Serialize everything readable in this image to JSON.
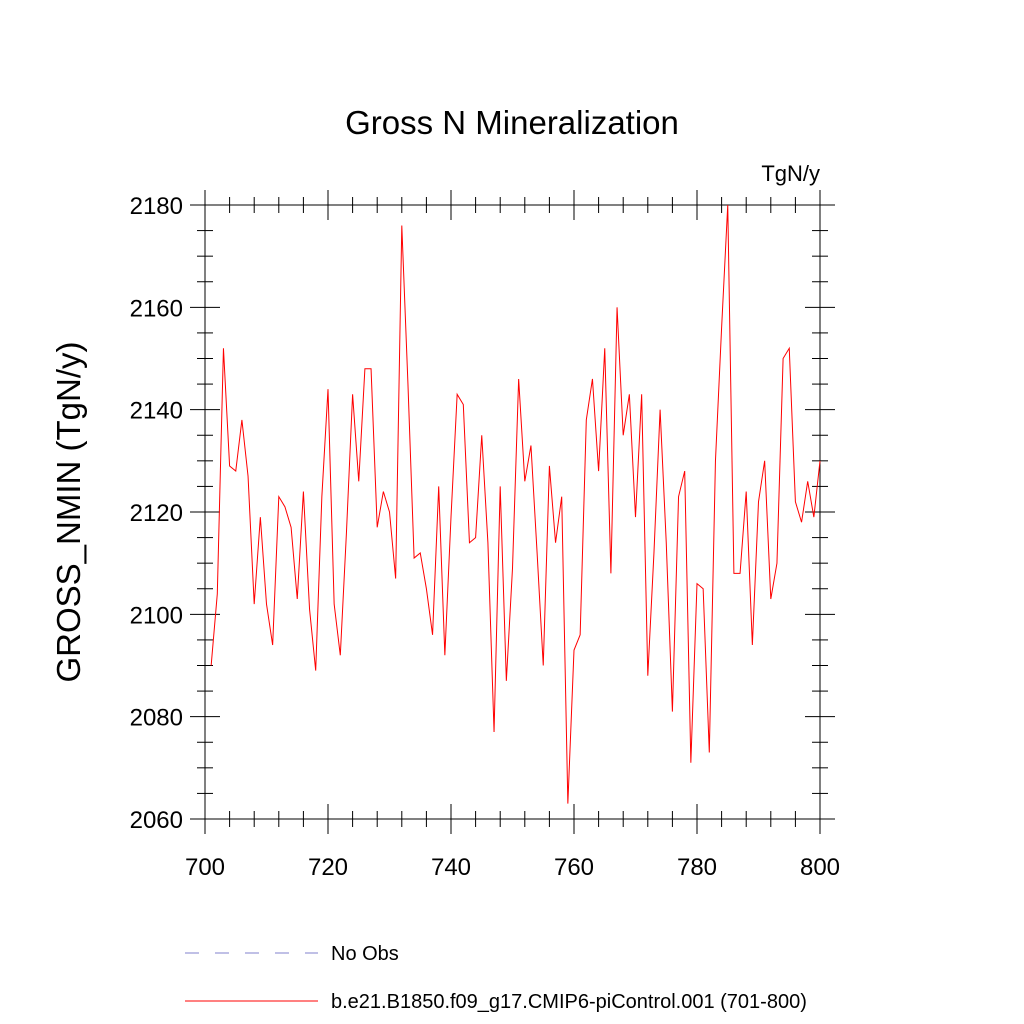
{
  "chart_data": {
    "type": "line",
    "title": "Gross N Mineralization",
    "units_label": "TgN/y",
    "ylabel": "GROSS_NMIN  (TgN/y)",
    "xlabel": "",
    "xlim": [
      700,
      800
    ],
    "ylim": [
      2060,
      2180
    ],
    "x_ticks": [
      700,
      720,
      740,
      760,
      780,
      800
    ],
    "y_ticks": [
      2060,
      2080,
      2100,
      2120,
      2140,
      2160,
      2180
    ],
    "x_minor_step": 4,
    "y_minor_step": 5,
    "grid": false,
    "legend_position": "bottom",
    "series": [
      {
        "name": "No Obs",
        "color": "#8080cc",
        "style": "dashed",
        "x": [],
        "values": []
      },
      {
        "name": "b.e21.B1850.f09_g17.CMIP6-piControl.001 (701-800)",
        "color": "#ff0000",
        "style": "solid",
        "x": [
          701,
          702,
          703,
          704,
          705,
          706,
          707,
          708,
          709,
          710,
          711,
          712,
          713,
          714,
          715,
          716,
          717,
          718,
          719,
          720,
          721,
          722,
          723,
          724,
          725,
          726,
          727,
          728,
          729,
          730,
          731,
          732,
          733,
          734,
          735,
          736,
          737,
          738,
          739,
          740,
          741,
          742,
          743,
          744,
          745,
          746,
          747,
          748,
          749,
          750,
          751,
          752,
          753,
          754,
          755,
          756,
          757,
          758,
          759,
          760,
          761,
          762,
          763,
          764,
          765,
          766,
          767,
          768,
          769,
          770,
          771,
          772,
          773,
          774,
          775,
          776,
          777,
          778,
          779,
          780,
          781,
          782,
          783,
          784,
          785,
          786,
          787,
          788,
          789,
          790,
          791,
          792,
          793,
          794,
          795,
          796,
          797,
          798,
          799,
          800
        ],
        "values": [
          2090,
          2104,
          2152,
          2129,
          2128,
          2138,
          2127,
          2102,
          2119,
          2102,
          2094,
          2123,
          2121,
          2117,
          2103,
          2124,
          2101,
          2089,
          2123,
          2144,
          2102,
          2092,
          2116,
          2143,
          2126,
          2148,
          2148,
          2117,
          2124,
          2120,
          2107,
          2176,
          2145,
          2111,
          2112,
          2105,
          2096,
          2125,
          2092,
          2119,
          2143,
          2141,
          2114,
          2115,
          2135,
          2114,
          2077,
          2125,
          2087,
          2109,
          2146,
          2126,
          2133,
          2112,
          2090,
          2129,
          2114,
          2123,
          2063,
          2093,
          2096,
          2138,
          2146,
          2128,
          2152,
          2108,
          2160,
          2135,
          2143,
          2119,
          2143,
          2088,
          2112,
          2140,
          2114,
          2081,
          2123,
          2128,
          2071,
          2106,
          2105,
          2073,
          2130,
          2156,
          2180,
          2108,
          2108,
          2124,
          2094,
          2122,
          2130,
          2103,
          2110,
          2150,
          2152,
          2122,
          2118,
          2126,
          2119,
          2130
        ]
      }
    ]
  }
}
